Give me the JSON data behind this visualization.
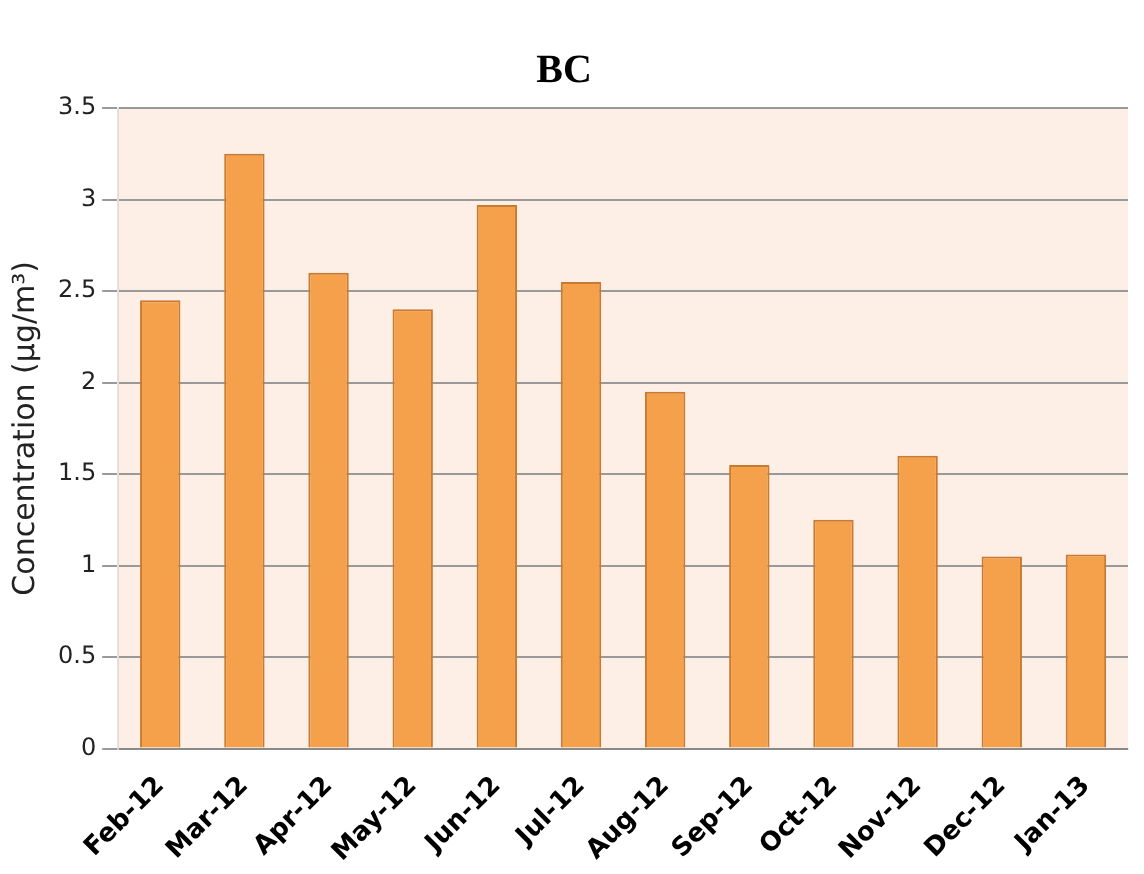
{
  "chart_data": {
    "type": "bar",
    "title": "BC",
    "ylabel": "Concentration (µg/m³)",
    "categories": [
      "Feb-12",
      "Mar-12",
      "Apr-12",
      "May-12",
      "Jun-12",
      "Jul-12",
      "Aug-12",
      "Sep-12",
      "Oct-12",
      "Nov-12",
      "Dec-12",
      "Jan-13"
    ],
    "values": [
      2.45,
      3.25,
      2.6,
      2.4,
      2.97,
      2.55,
      1.95,
      1.55,
      1.25,
      1.6,
      1.05,
      1.06
    ],
    "color": "#f5a04a",
    "ylim": [
      0,
      3.5
    ],
    "yticks": [
      0,
      0.5,
      1,
      1.5,
      2,
      2.5,
      3,
      3.5
    ],
    "grid": "y"
  }
}
